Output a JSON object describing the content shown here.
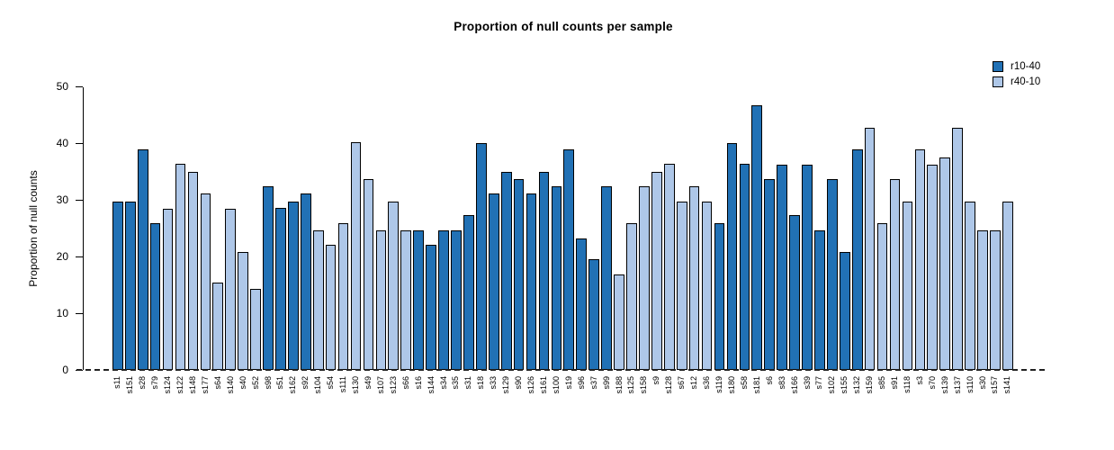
{
  "figure": {
    "legend": [
      {
        "label": "r10-40",
        "color": "#2171b5"
      },
      {
        "label": "r40-10",
        "color": "#aec7e8"
      }
    ]
  },
  "chart_data": {
    "type": "bar",
    "title": "Proportion of null counts per sample",
    "xlabel": "",
    "ylabel": "Proportion of null counts",
    "ylim": [
      0,
      50
    ],
    "yticks": [
      0,
      10,
      20,
      30,
      40,
      50
    ],
    "grid": false,
    "legend_position": "top-right",
    "zero_line_style": "dashed",
    "series_colors": {
      "r10-40": "#2171b5",
      "r40-10": "#aec7e8"
    },
    "samples": [
      {
        "name": "s11",
        "value": 29.8,
        "series": "r10-40"
      },
      {
        "name": "s151",
        "value": 29.8,
        "series": "r10-40"
      },
      {
        "name": "s28",
        "value": 39.0,
        "series": "r10-40"
      },
      {
        "name": "s79",
        "value": 26.0,
        "series": "r10-40"
      },
      {
        "name": "s124",
        "value": 28.5,
        "series": "r40-10"
      },
      {
        "name": "s122",
        "value": 36.4,
        "series": "r40-10"
      },
      {
        "name": "s148",
        "value": 35.0,
        "series": "r40-10"
      },
      {
        "name": "s177",
        "value": 31.2,
        "series": "r40-10"
      },
      {
        "name": "s64",
        "value": 15.5,
        "series": "r40-10"
      },
      {
        "name": "s140",
        "value": 28.5,
        "series": "r40-10"
      },
      {
        "name": "s40",
        "value": 20.8,
        "series": "r40-10"
      },
      {
        "name": "s52",
        "value": 14.3,
        "series": "r40-10"
      },
      {
        "name": "s98",
        "value": 32.4,
        "series": "r10-40"
      },
      {
        "name": "s51",
        "value": 28.6,
        "series": "r10-40"
      },
      {
        "name": "s162",
        "value": 29.8,
        "series": "r10-40"
      },
      {
        "name": "s92",
        "value": 31.2,
        "series": "r10-40"
      },
      {
        "name": "s104",
        "value": 24.6,
        "series": "r40-10"
      },
      {
        "name": "s54",
        "value": 22.1,
        "series": "r40-10"
      },
      {
        "name": "s111",
        "value": 26.0,
        "series": "r40-10"
      },
      {
        "name": "s130",
        "value": 40.2,
        "series": "r40-10"
      },
      {
        "name": "s49",
        "value": 33.8,
        "series": "r40-10"
      },
      {
        "name": "s107",
        "value": 24.6,
        "series": "r40-10"
      },
      {
        "name": "s123",
        "value": 29.8,
        "series": "r40-10"
      },
      {
        "name": "s66",
        "value": 24.6,
        "series": "r40-10"
      },
      {
        "name": "s16",
        "value": 24.6,
        "series": "r10-40"
      },
      {
        "name": "s144",
        "value": 22.1,
        "series": "r10-40"
      },
      {
        "name": "s34",
        "value": 24.6,
        "series": "r10-40"
      },
      {
        "name": "s35",
        "value": 24.6,
        "series": "r10-40"
      },
      {
        "name": "s31",
        "value": 27.3,
        "series": "r10-40"
      },
      {
        "name": "s18",
        "value": 40.1,
        "series": "r10-40"
      },
      {
        "name": "s33",
        "value": 31.2,
        "series": "r10-40"
      },
      {
        "name": "s129",
        "value": 35.0,
        "series": "r10-40"
      },
      {
        "name": "s90",
        "value": 33.7,
        "series": "r10-40"
      },
      {
        "name": "s126",
        "value": 31.2,
        "series": "r10-40"
      },
      {
        "name": "s161",
        "value": 35.0,
        "series": "r10-40"
      },
      {
        "name": "s100",
        "value": 32.4,
        "series": "r10-40"
      },
      {
        "name": "s19",
        "value": 39.0,
        "series": "r10-40"
      },
      {
        "name": "s96",
        "value": 23.3,
        "series": "r10-40"
      },
      {
        "name": "s37",
        "value": 19.5,
        "series": "r10-40"
      },
      {
        "name": "s99",
        "value": 32.4,
        "series": "r10-40"
      },
      {
        "name": "s188",
        "value": 16.9,
        "series": "r40-10"
      },
      {
        "name": "s125",
        "value": 26.0,
        "series": "r40-10"
      },
      {
        "name": "s158",
        "value": 32.4,
        "series": "r40-10"
      },
      {
        "name": "s9",
        "value": 35.0,
        "series": "r40-10"
      },
      {
        "name": "s128",
        "value": 36.4,
        "series": "r40-10"
      },
      {
        "name": "s67",
        "value": 29.8,
        "series": "r40-10"
      },
      {
        "name": "s12",
        "value": 32.4,
        "series": "r40-10"
      },
      {
        "name": "s36",
        "value": 29.8,
        "series": "r40-10"
      },
      {
        "name": "s119",
        "value": 26.0,
        "series": "r10-40"
      },
      {
        "name": "s180",
        "value": 40.1,
        "series": "r10-40"
      },
      {
        "name": "s58",
        "value": 36.4,
        "series": "r10-40"
      },
      {
        "name": "s181",
        "value": 46.8,
        "series": "r10-40"
      },
      {
        "name": "s6",
        "value": 33.7,
        "series": "r10-40"
      },
      {
        "name": "s83",
        "value": 36.3,
        "series": "r10-40"
      },
      {
        "name": "s166",
        "value": 27.3,
        "series": "r10-40"
      },
      {
        "name": "s39",
        "value": 36.3,
        "series": "r10-40"
      },
      {
        "name": "s77",
        "value": 24.6,
        "series": "r10-40"
      },
      {
        "name": "s102",
        "value": 33.7,
        "series": "r10-40"
      },
      {
        "name": "s155",
        "value": 20.8,
        "series": "r10-40"
      },
      {
        "name": "s132",
        "value": 39.0,
        "series": "r10-40"
      },
      {
        "name": "s159",
        "value": 42.8,
        "series": "r40-10"
      },
      {
        "name": "s85",
        "value": 26.0,
        "series": "r40-10"
      },
      {
        "name": "s91",
        "value": 33.8,
        "series": "r40-10"
      },
      {
        "name": "s118",
        "value": 29.8,
        "series": "r40-10"
      },
      {
        "name": "s3",
        "value": 39.0,
        "series": "r40-10"
      },
      {
        "name": "s70",
        "value": 36.3,
        "series": "r40-10"
      },
      {
        "name": "s139",
        "value": 37.6,
        "series": "r40-10"
      },
      {
        "name": "s137",
        "value": 42.8,
        "series": "r40-10"
      },
      {
        "name": "s110",
        "value": 29.8,
        "series": "r40-10"
      },
      {
        "name": "s30",
        "value": 24.6,
        "series": "r40-10"
      },
      {
        "name": "s157",
        "value": 24.6,
        "series": "r40-10"
      },
      {
        "name": "s141",
        "value": 29.8,
        "series": "r40-10"
      }
    ]
  }
}
